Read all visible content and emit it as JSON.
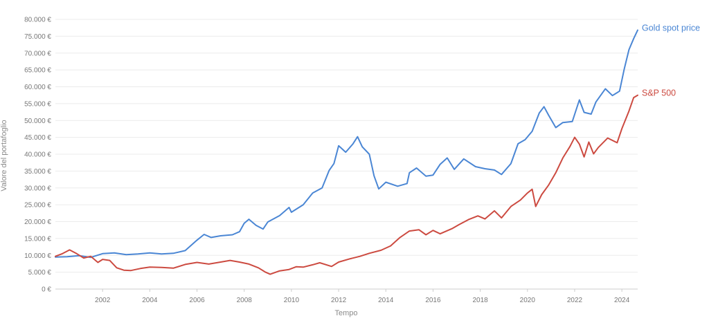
{
  "chart_data": {
    "type": "line",
    "title": "",
    "xlabel": "Tempo",
    "ylabel": "Valore del portafoglio",
    "xlim": [
      2000.0,
      2024.67
    ],
    "ylim": [
      0,
      80000
    ],
    "y_ticks": [
      0,
      5000,
      10000,
      15000,
      20000,
      25000,
      30000,
      35000,
      40000,
      45000,
      50000,
      55000,
      60000,
      65000,
      70000,
      75000,
      80000
    ],
    "y_tick_labels": [
      "0 €",
      "5.000 €",
      "10.000 €",
      "15.000 €",
      "20.000 €",
      "25.000 €",
      "30.000 €",
      "35.000 €",
      "40.000 €",
      "45.000 €",
      "50.000 €",
      "55.000 €",
      "60.000 €",
      "65.000 €",
      "70.000 €",
      "75.000 €",
      "80.000 €"
    ],
    "x_ticks": [
      2002,
      2004,
      2006,
      2008,
      2010,
      2012,
      2014,
      2016,
      2018,
      2020,
      2022,
      2024
    ],
    "x_tick_labels": [
      "2002",
      "2004",
      "2006",
      "2008",
      "2010",
      "2012",
      "2014",
      "2016",
      "2018",
      "2020",
      "2022",
      "2024"
    ],
    "grid": true,
    "legend": "direct-labels-right",
    "series": [
      {
        "name": "Gold spot price",
        "color": "#4a86d4",
        "points": [
          [
            2000.0,
            9500
          ],
          [
            2000.5,
            9600
          ],
          [
            2001.0,
            9900
          ],
          [
            2001.5,
            9400
          ],
          [
            2002.0,
            10500
          ],
          [
            2002.5,
            10700
          ],
          [
            2003.0,
            10200
          ],
          [
            2003.5,
            10400
          ],
          [
            2004.0,
            10700
          ],
          [
            2004.5,
            10400
          ],
          [
            2005.0,
            10600
          ],
          [
            2005.5,
            11400
          ],
          [
            2006.0,
            14500
          ],
          [
            2006.3,
            16200
          ],
          [
            2006.6,
            15300
          ],
          [
            2007.0,
            15800
          ],
          [
            2007.5,
            16100
          ],
          [
            2007.8,
            17000
          ],
          [
            2008.0,
            19500
          ],
          [
            2008.2,
            20700
          ],
          [
            2008.5,
            18900
          ],
          [
            2008.8,
            17800
          ],
          [
            2009.0,
            19900
          ],
          [
            2009.5,
            21800
          ],
          [
            2009.9,
            24200
          ],
          [
            2010.0,
            22800
          ],
          [
            2010.5,
            25000
          ],
          [
            2010.9,
            28500
          ],
          [
            2011.3,
            30000
          ],
          [
            2011.6,
            35200
          ],
          [
            2011.8,
            37200
          ],
          [
            2012.0,
            42500
          ],
          [
            2012.3,
            40600
          ],
          [
            2012.6,
            43000
          ],
          [
            2012.8,
            45200
          ],
          [
            2013.0,
            42200
          ],
          [
            2013.3,
            40000
          ],
          [
            2013.5,
            33600
          ],
          [
            2013.7,
            29700
          ],
          [
            2014.0,
            31700
          ],
          [
            2014.5,
            30500
          ],
          [
            2014.9,
            31300
          ],
          [
            2015.0,
            34500
          ],
          [
            2015.3,
            35900
          ],
          [
            2015.7,
            33500
          ],
          [
            2016.0,
            33800
          ],
          [
            2016.3,
            37000
          ],
          [
            2016.6,
            38900
          ],
          [
            2016.9,
            35500
          ],
          [
            2017.3,
            38600
          ],
          [
            2017.8,
            36300
          ],
          [
            2018.2,
            35700
          ],
          [
            2018.6,
            35300
          ],
          [
            2018.9,
            34000
          ],
          [
            2019.3,
            37200
          ],
          [
            2019.6,
            43100
          ],
          [
            2019.9,
            44300
          ],
          [
            2020.2,
            46800
          ],
          [
            2020.5,
            52200
          ],
          [
            2020.7,
            54100
          ],
          [
            2020.9,
            51500
          ],
          [
            2021.2,
            47900
          ],
          [
            2021.5,
            49400
          ],
          [
            2021.9,
            49700
          ],
          [
            2022.2,
            56100
          ],
          [
            2022.4,
            52400
          ],
          [
            2022.7,
            51900
          ],
          [
            2022.9,
            55500
          ],
          [
            2023.3,
            59400
          ],
          [
            2023.6,
            57400
          ],
          [
            2023.9,
            58700
          ],
          [
            2024.1,
            65300
          ],
          [
            2024.3,
            71000
          ],
          [
            2024.5,
            74300
          ],
          [
            2024.67,
            76800
          ]
        ]
      },
      {
        "name": "S&P 500",
        "color": "#cc4a40",
        "points": [
          [
            2000.0,
            9700
          ],
          [
            2000.3,
            10500
          ],
          [
            2000.6,
            11600
          ],
          [
            2000.9,
            10500
          ],
          [
            2001.2,
            9200
          ],
          [
            2001.5,
            9700
          ],
          [
            2001.8,
            7900
          ],
          [
            2002.0,
            8800
          ],
          [
            2002.3,
            8500
          ],
          [
            2002.6,
            6300
          ],
          [
            2002.9,
            5600
          ],
          [
            2003.2,
            5500
          ],
          [
            2003.6,
            6100
          ],
          [
            2004.0,
            6500
          ],
          [
            2004.5,
            6400
          ],
          [
            2005.0,
            6200
          ],
          [
            2005.5,
            7300
          ],
          [
            2006.0,
            7900
          ],
          [
            2006.5,
            7400
          ],
          [
            2007.0,
            8000
          ],
          [
            2007.4,
            8500
          ],
          [
            2007.8,
            8000
          ],
          [
            2008.2,
            7400
          ],
          [
            2008.6,
            6300
          ],
          [
            2008.9,
            5000
          ],
          [
            2009.1,
            4400
          ],
          [
            2009.5,
            5400
          ],
          [
            2009.9,
            5800
          ],
          [
            2010.2,
            6600
          ],
          [
            2010.5,
            6500
          ],
          [
            2010.9,
            7200
          ],
          [
            2011.2,
            7800
          ],
          [
            2011.7,
            6700
          ],
          [
            2012.0,
            8000
          ],
          [
            2012.5,
            9000
          ],
          [
            2012.9,
            9700
          ],
          [
            2013.3,
            10600
          ],
          [
            2013.8,
            11500
          ],
          [
            2014.2,
            12800
          ],
          [
            2014.6,
            15300
          ],
          [
            2015.0,
            17200
          ],
          [
            2015.4,
            17600
          ],
          [
            2015.7,
            16100
          ],
          [
            2016.0,
            17400
          ],
          [
            2016.3,
            16400
          ],
          [
            2016.8,
            17900
          ],
          [
            2017.1,
            19100
          ],
          [
            2017.5,
            20600
          ],
          [
            2017.9,
            21700
          ],
          [
            2018.2,
            20800
          ],
          [
            2018.6,
            23200
          ],
          [
            2018.9,
            21100
          ],
          [
            2019.3,
            24500
          ],
          [
            2019.7,
            26400
          ],
          [
            2020.0,
            28500
          ],
          [
            2020.2,
            29600
          ],
          [
            2020.35,
            24500
          ],
          [
            2020.6,
            28000
          ],
          [
            2020.9,
            30900
          ],
          [
            2021.2,
            34500
          ],
          [
            2021.5,
            38900
          ],
          [
            2021.8,
            42300
          ],
          [
            2022.0,
            45000
          ],
          [
            2022.2,
            43000
          ],
          [
            2022.4,
            39200
          ],
          [
            2022.6,
            43600
          ],
          [
            2022.8,
            40100
          ],
          [
            2023.0,
            42000
          ],
          [
            2023.4,
            44800
          ],
          [
            2023.8,
            43400
          ],
          [
            2024.0,
            47600
          ],
          [
            2024.3,
            52800
          ],
          [
            2024.5,
            56800
          ],
          [
            2024.67,
            57500
          ]
        ]
      }
    ]
  }
}
